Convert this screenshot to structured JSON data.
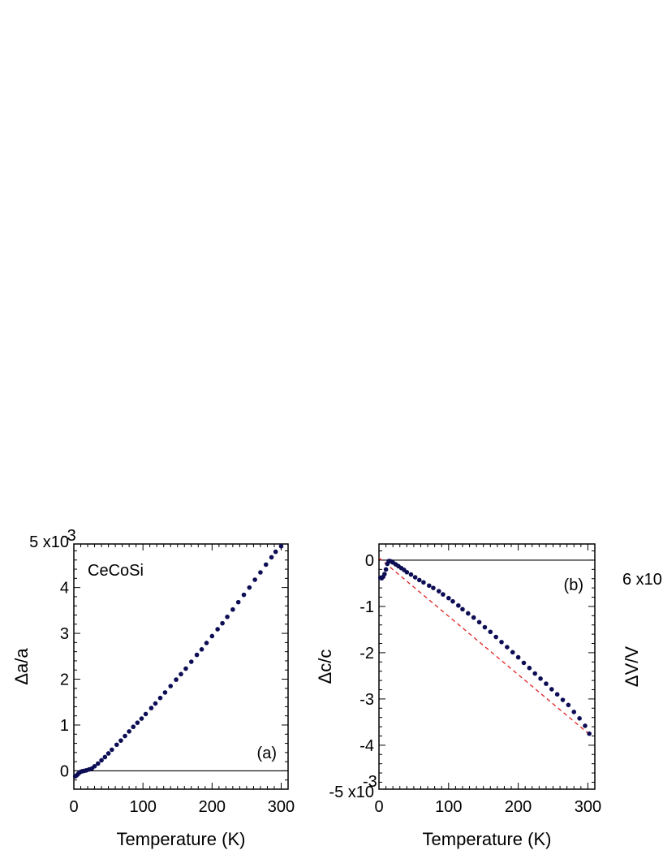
{
  "figure": {
    "sample_label": "CeCoSi",
    "cut_panel_label": "6 x10",
    "cut_panel_ylabel": "ΔV/V"
  },
  "chart_data": [
    {
      "type": "scatter",
      "panel": "(a)",
      "xlabel": "Temperature  (K)",
      "ylabel": "Δa/a",
      "xlim": [
        0,
        310
      ],
      "ylim": [
        -0.4,
        4.95
      ],
      "xticks": [
        0,
        100,
        200,
        300
      ],
      "xtick_labels": [
        "0",
        "100",
        "200",
        "300"
      ],
      "yticks": [
        0,
        1,
        2,
        3,
        4,
        5
      ],
      "ytick_labels": [
        "0",
        "1",
        "2",
        "3",
        "4",
        "5 x10"
      ],
      "y_exponent": "-3",
      "reference_line_y": 0,
      "marker_color": "#0d0d55",
      "series": [
        {
          "x": [
            2,
            4,
            6,
            8,
            10,
            12,
            15,
            18,
            22,
            26,
            30,
            35,
            40,
            45,
            50,
            55,
            62,
            68,
            74,
            80,
            86,
            92,
            98,
            104,
            112,
            118,
            125,
            132,
            140,
            148,
            155,
            162,
            170,
            178,
            185,
            192,
            200,
            208,
            215,
            222,
            230,
            238,
            246,
            254,
            262,
            270,
            278,
            286,
            292,
            300
          ],
          "y": [
            -0.12,
            -0.1,
            -0.07,
            -0.04,
            -0.02,
            -0.01,
            0.0,
            0.01,
            0.03,
            0.05,
            0.1,
            0.16,
            0.23,
            0.3,
            0.38,
            0.46,
            0.57,
            0.66,
            0.76,
            0.86,
            0.96,
            1.05,
            1.14,
            1.24,
            1.37,
            1.47,
            1.59,
            1.71,
            1.85,
            1.99,
            2.11,
            2.23,
            2.38,
            2.53,
            2.65,
            2.79,
            2.94,
            3.09,
            3.22,
            3.36,
            3.52,
            3.68,
            3.84,
            4.0,
            4.17,
            4.33,
            4.5,
            4.66,
            4.78,
            4.9
          ]
        }
      ]
    },
    {
      "type": "scatter",
      "panel": "(b)",
      "xlabel": "Temperature  (K)",
      "ylabel": "Δc/c",
      "xlim": [
        0,
        310
      ],
      "ylim": [
        -4.95,
        0.35
      ],
      "xticks": [
        0,
        100,
        200,
        300
      ],
      "xtick_labels": [
        "0",
        "100",
        "200",
        "300"
      ],
      "yticks": [
        0,
        -1,
        -2,
        -3,
        -4,
        -5
      ],
      "ytick_labels": [
        "0",
        "-1",
        "-2",
        "-3",
        "-4",
        "-5 x10"
      ],
      "y_exponent": "-3",
      "reference_line_y": 0,
      "marker_color": "#0d0d55",
      "fit_line": {
        "x": [
          0,
          305
        ],
        "y": [
          0.05,
          -3.8
        ],
        "color": "#e02020",
        "style": "dashed"
      },
      "series": [
        {
          "x": [
            2,
            4,
            6,
            8,
            10,
            12,
            14,
            16,
            18,
            20,
            24,
            28,
            32,
            36,
            40,
            46,
            52,
            58,
            64,
            72,
            78,
            86,
            92,
            100,
            106,
            114,
            120,
            128,
            136,
            144,
            152,
            160,
            168,
            176,
            184,
            192,
            200,
            208,
            216,
            224,
            232,
            240,
            248,
            256,
            264,
            272,
            280,
            288,
            296,
            302
          ],
          "y": [
            -0.38,
            -0.39,
            -0.36,
            -0.3,
            -0.2,
            -0.08,
            -0.02,
            -0.02,
            -0.03,
            -0.05,
            -0.09,
            -0.13,
            -0.17,
            -0.21,
            -0.26,
            -0.31,
            -0.37,
            -0.43,
            -0.48,
            -0.55,
            -0.6,
            -0.67,
            -0.74,
            -0.82,
            -0.89,
            -0.98,
            -1.06,
            -1.15,
            -1.24,
            -1.34,
            -1.45,
            -1.55,
            -1.66,
            -1.77,
            -1.88,
            -1.99,
            -2.1,
            -2.22,
            -2.33,
            -2.45,
            -2.56,
            -2.67,
            -2.79,
            -2.9,
            -3.02,
            -3.13,
            -3.28,
            -3.42,
            -3.58,
            -3.75
          ]
        }
      ]
    }
  ]
}
